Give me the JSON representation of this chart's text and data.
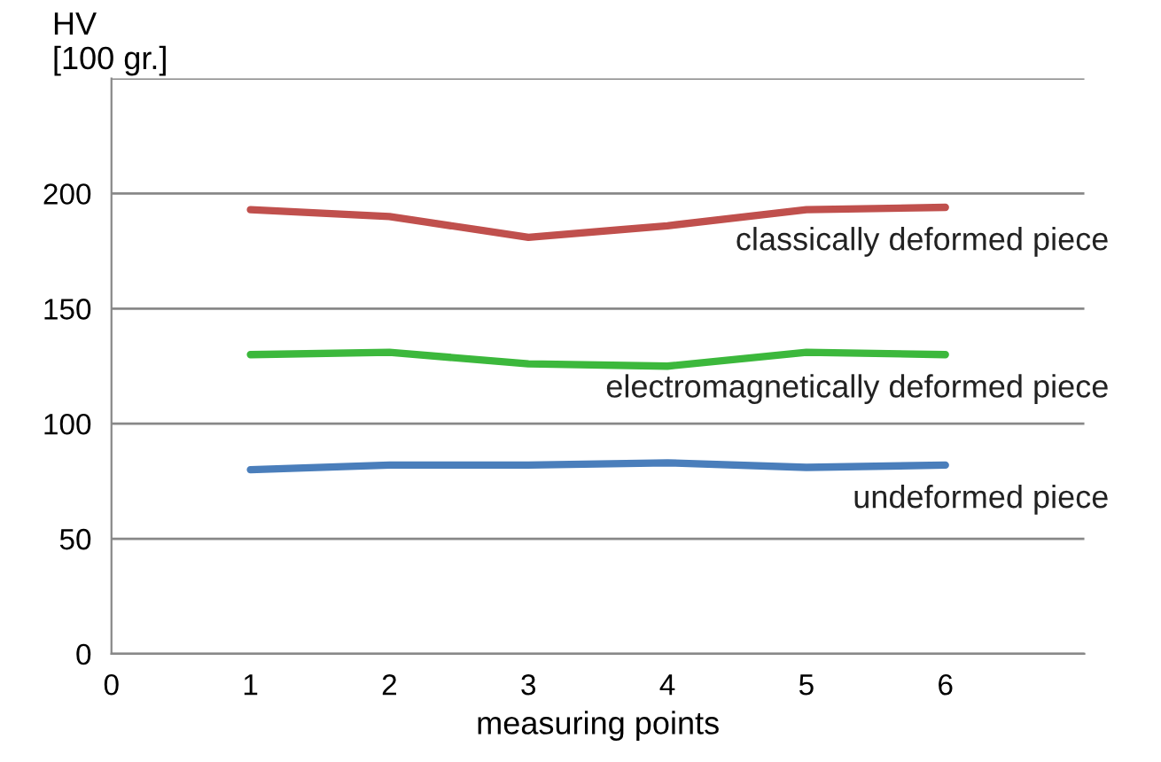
{
  "chart_data": {
    "type": "line",
    "xlabel": "measuring points",
    "ylabel": "HV\n[100 gr.]",
    "x": [
      1,
      2,
      3,
      4,
      5,
      6
    ],
    "series": [
      {
        "name": "classically deformed piece",
        "color": "#c0504d",
        "values": [
          193,
          190,
          181,
          186,
          193,
          194
        ]
      },
      {
        "name": "electromagnetically deformed piece",
        "color": "#3cb83c",
        "values": [
          130,
          131,
          126,
          125,
          131,
          130
        ]
      },
      {
        "name": "undeformed piece",
        "color": "#4a7ebb",
        "values": [
          80,
          82,
          82,
          83,
          81,
          82
        ]
      }
    ],
    "xlim": [
      0,
      7
    ],
    "xticks": [
      0,
      1,
      2,
      3,
      4,
      5,
      6
    ],
    "ylim": [
      0,
      250
    ],
    "yticks": [
      0,
      50,
      100,
      150,
      200,
      {
        "value": 250,
        "label": null
      }
    ],
    "grid": "y",
    "legend": false,
    "marker": "none",
    "line_style": "solid"
  }
}
